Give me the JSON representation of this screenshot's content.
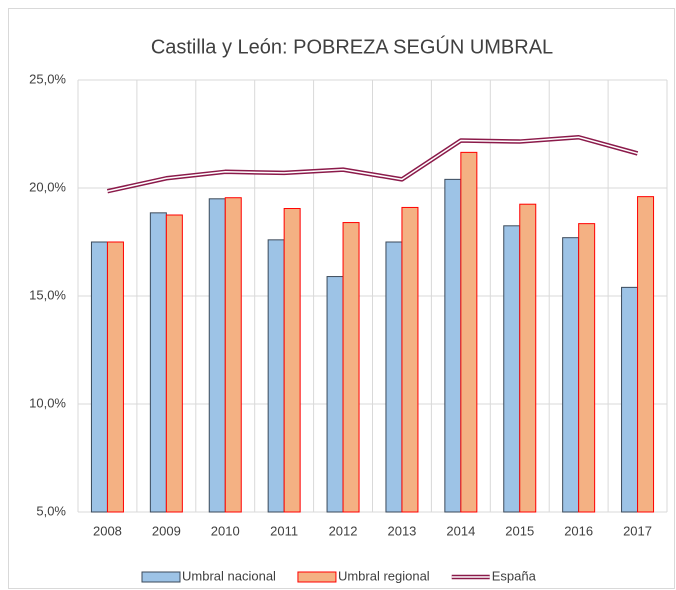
{
  "chart_data": {
    "type": "bar_line",
    "title": "Castilla y León: POBREZA SEGÚN UMBRAL",
    "categories": [
      "2008",
      "2009",
      "2010",
      "2011",
      "2012",
      "2013",
      "2014",
      "2015",
      "2016",
      "2017"
    ],
    "series": [
      {
        "name": "Umbral nacional",
        "type": "bar",
        "color": "#9dc3e6",
        "edge": "#3b4a5a",
        "values": [
          17.5,
          18.85,
          19.5,
          17.6,
          15.9,
          17.5,
          20.4,
          18.25,
          17.7,
          15.4
        ]
      },
      {
        "name": "Umbral regional",
        "type": "bar",
        "color": "#f4b183",
        "edge": "#ff0000",
        "values": [
          17.5,
          18.75,
          19.55,
          19.05,
          18.4,
          19.1,
          21.65,
          19.25,
          18.35,
          19.6
        ]
      },
      {
        "name": "España",
        "type": "line",
        "color": "#8b1a4a",
        "values": [
          19.85,
          20.45,
          20.75,
          20.7,
          20.85,
          20.4,
          22.2,
          22.15,
          22.35,
          21.6
        ]
      }
    ],
    "ylim": [
      5,
      25
    ],
    "yticks": [
      {
        "value": 5,
        "label": "5,0%"
      },
      {
        "value": 10,
        "label": "10,0%"
      },
      {
        "value": 15,
        "label": "15,0%"
      },
      {
        "value": 20,
        "label": "20,0%"
      },
      {
        "value": 25,
        "label": "25,0%"
      }
    ],
    "grid": true,
    "legend": "bottom"
  }
}
